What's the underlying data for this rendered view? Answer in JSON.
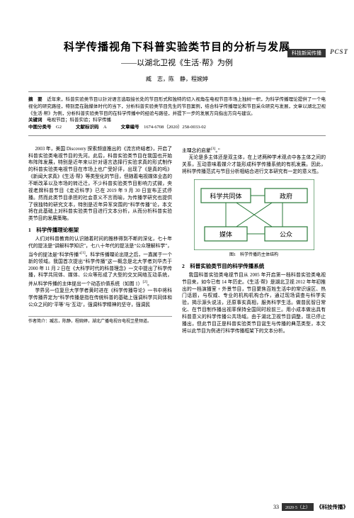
{
  "header": {
    "tag": "科技新闻传播",
    "logo": "PCST"
  },
  "title": {
    "main": "科学传播视角下科普实验类节目的分析与发展",
    "sub": "——以湖北卫视《生活·帮》为例"
  },
  "authors": "臧　志，陈　静，程婉婷",
  "abstract": {
    "label": "摘　要",
    "text": "近年来，科普实验类节目以针对语言选取接长处的节目形式和独特的切入视角在电视节目市场上独树一帜，为科学传播理论提供了一个电视化的研究路径，特别是在融媒体时代的当下，分析科普实验类节目先生的节目案例，结合科学传播理论和节目采众研究与发展，文章以湖北卫视《生活·帮》为例，分析科普实验类节目的在科学传播中的经验与路径，并提下一步的发展方向指出方向与建议。"
  },
  "keywords": {
    "label": "关键词",
    "text": "电视节目；科普实验；科学传播"
  },
  "meta": {
    "class_label": "中图分类号",
    "class_value": "G2",
    "doc_label": "文献标识码",
    "doc_value": "A",
    "article_label": "文章编号",
    "article_value": "1674-6708（2020）258-0033-02"
  },
  "col_left": {
    "p1": "2003 年，美国 Discovery 探索频道推出的《流言终结者》，开启了科普实验类电视节目的先河。此后，科普实验类节目在我国也开始布阵阵发展，特别是近年来以针对语言选择行实验求真的形式制作的科普实验类电视节目在市场上也广受好评，出现了《是真的吗》《新闻大求真》《生活·帮》等类型化的节目，但随着电视媒体业态的不断改革以及市场的转迁迁，不少科普实验类节目影响力式微，央视老牌科普节目《走近科学》已在 2019 年 9 月 30 日宣布正式停播。然而此类节目承担的社会意义不言而喻，为传播学研究也提供了很独特的研究文本，特别是近年异军突围的“科学传播”论，本文将在此基础上对科普实验类节目进行文本分析，从而分析科普实验类节目的发展策略。",
    "h1": "1　科学传播理论框架",
    "p2": "人们对科普教育的认识随着时间的推移得到不断的深化，七十年代的提法是“讲解科学知识”，七八十年代的提法是“公众理解科学”，当今的提法是“科学传播”<sup>[1]</sup>。科学传播理论出现之后，一直属于一个新的领域。我国首次提出“科学传播”这一概念是北大学者刘华杰于 2000 年 11 月 2 日在《大科学时代的科普理念》一文中提出了科学传播，科学共同体、媒体、公众等形成了大型的交叉网络互动系统，并从科学传播的主体提出一个动态价值系统（如图 1）<sup>[2]</sup>。",
    "p3": "学界另一位复旦大学学者黄时进在《科学传播导论》一书中将科学传播界定为“科学传播是指在传统科普的基础上强调科学共同体和公众之间的‘平等’与‘互动’，强调科学精神的坚守，强调民",
    "note_label": "作者简介：",
    "note_text": "臧志，陈静，程婉婷，湖北广播电视台电视卫星频道。"
  },
  "col_right": {
    "p1": "主理念的启蒙<sup>[3]</sup>。”",
    "p2": "无论是多主体还是双主体，在上述两种学术观点中各主体之间的关系，互动意味着媒介才能形成科学传播系统的有机发展。因此，将科学传播范式与节目分析相结合进行文本研究有一定的意义性。",
    "fig": {
      "nodes": [
        "科学共同体",
        "政府",
        "媒体",
        "公众"
      ],
      "box_border": "#2a7a3a",
      "box_fill": "#ffffff",
      "line_color": "#2a7a3a",
      "caption": "图1　科学传播的主体结构"
    },
    "h2": "2　科普实验类节目的科学传播系统",
    "p3": "我国科普实验类电视节目从 2005 年开启第一档科普实验类电视节目来，如今已有 14 年历史。《生活·帮》是湖北卫视 2012 年年初推出的一档演播室 + 外景节目，节目聚焦百姓生活中的常识误区、热门话题，与权威、专业的机构机构合作，通过现场调查与科学实验，揭示源头说法，还原事实真相，服务科学生活。做普民智日常化、在节目制作播出视率保持全国同时段前三。用小成本做出具有科普意义的科学传播公共场域。由于湖北卫视节目调整，现已停止播出，但此节目正是科普实验类节目诞生与传播的典范类型，本文将以此节目为例进行科学传播框架下的文本分析。"
  },
  "footer": {
    "page": "33",
    "issue": "2020·5（上）",
    "journal": "《科技传播》"
  }
}
